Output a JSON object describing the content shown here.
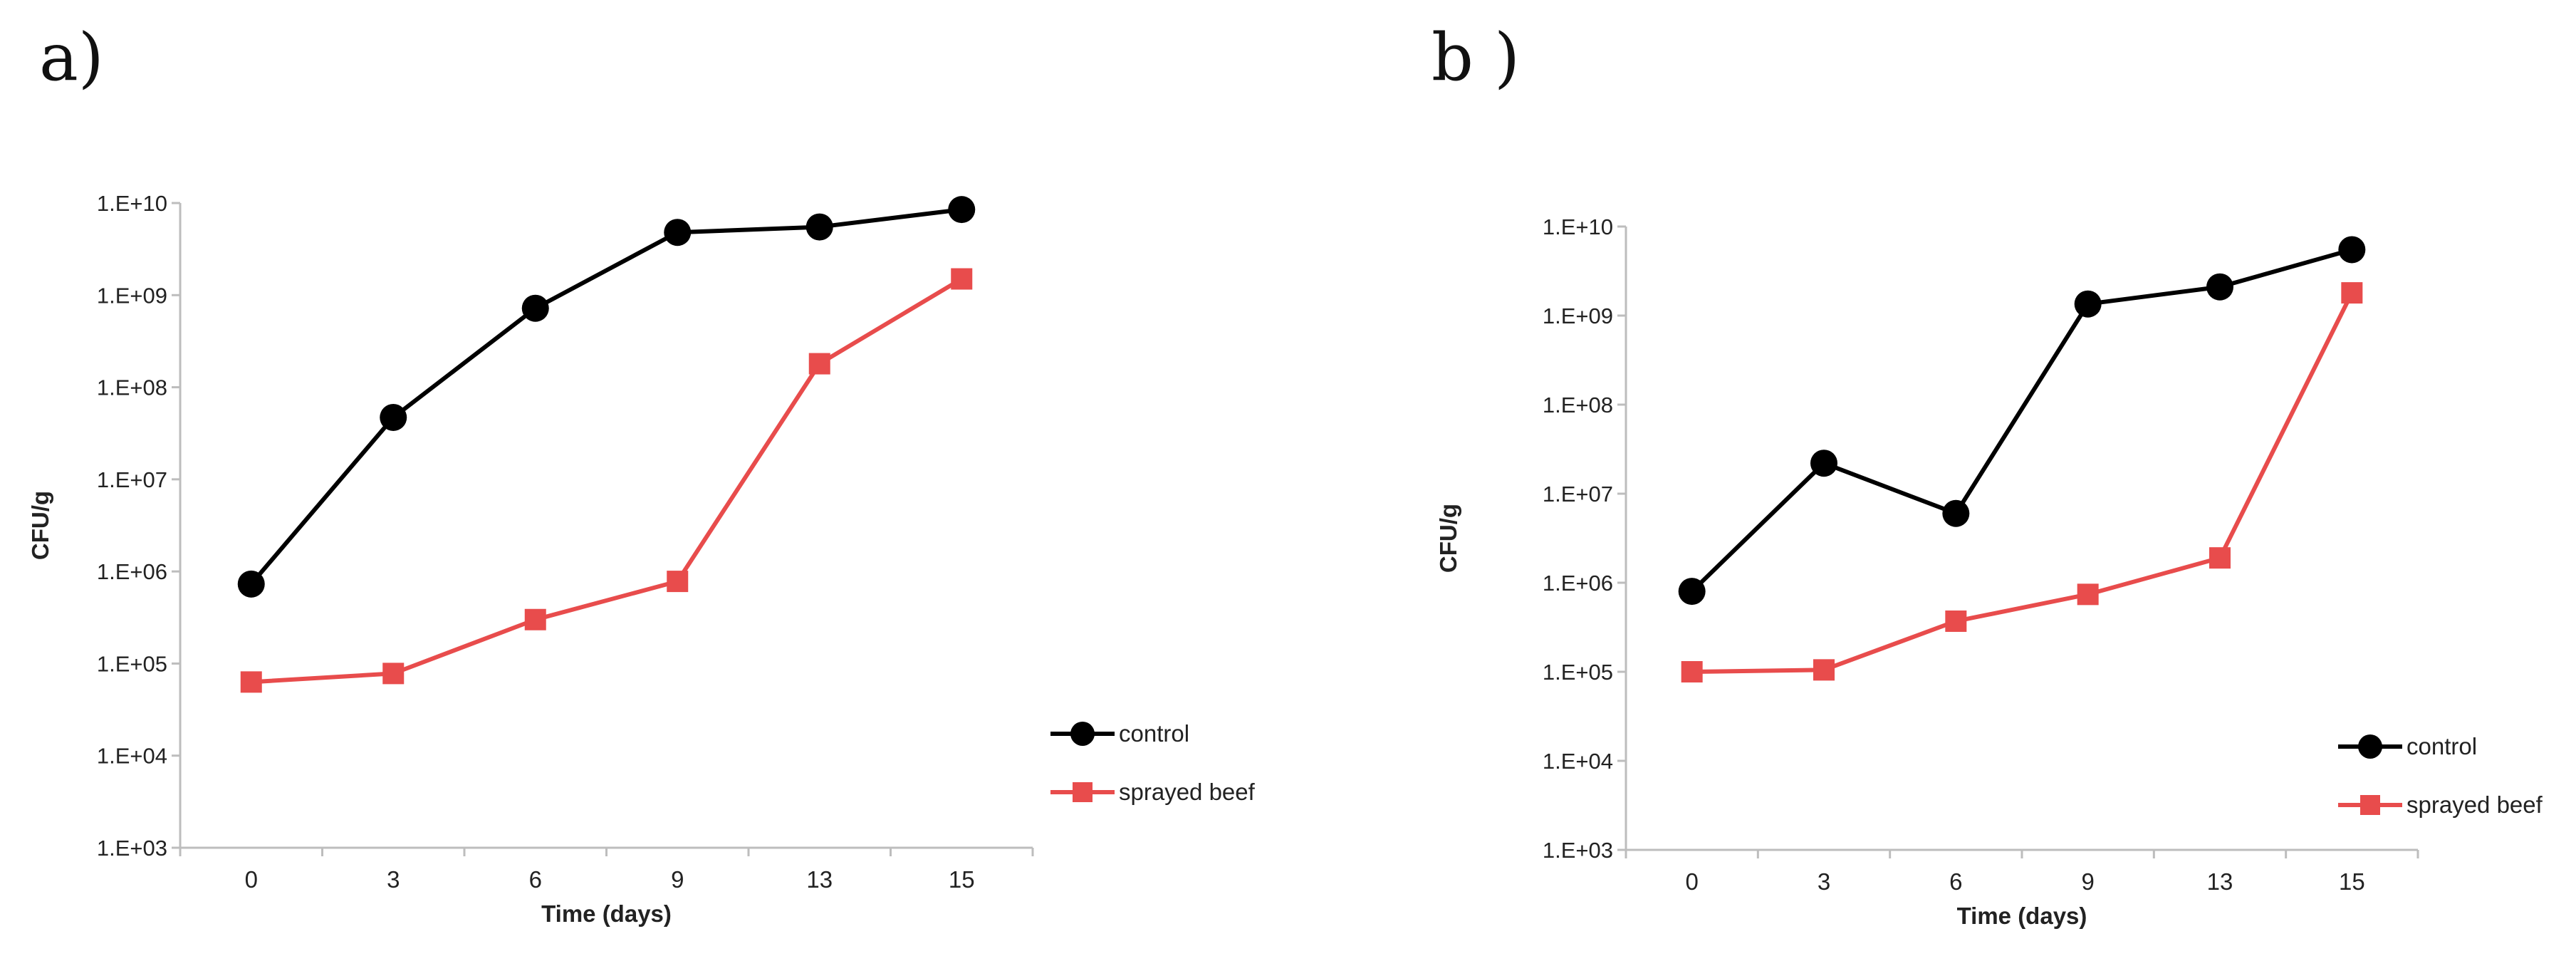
{
  "chart_data": [
    {
      "panel": "a)",
      "type": "line",
      "title": "",
      "xlabel": "Time (days)",
      "ylabel": "CFU/g",
      "y_scale": "log10",
      "ylim": [
        1000,
        10000000000
      ],
      "y_ticks": [
        "1.E+03",
        "1.E+04",
        "1.E+05",
        "1.E+06",
        "1.E+07",
        "1.E+08",
        "1.E+09",
        "1.E+10"
      ],
      "categories": [
        "0",
        "3",
        "6",
        "9",
        "13",
        "15"
      ],
      "legend_position": "right",
      "grid": false,
      "series": [
        {
          "name": "control",
          "color": "#000000",
          "marker": "circle",
          "values": [
            730000,
            47000000,
            720000000,
            4800000000,
            5500000000,
            8500000000
          ]
        },
        {
          "name": "sprayed beef",
          "color": "#e84c4c",
          "marker": "square",
          "values": [
            63000,
            78000,
            300000,
            780000,
            180000000,
            1500000000
          ]
        }
      ]
    },
    {
      "panel": "b )",
      "type": "line",
      "title": "",
      "xlabel": "Time (days)",
      "ylabel": "CFU/g",
      "y_scale": "log10",
      "ylim": [
        1000,
        10000000000
      ],
      "y_ticks": [
        "1.E+03",
        "1.E+04",
        "1.E+05",
        "1.E+06",
        "1.E+07",
        "1.E+08",
        "1.E+09",
        "1.E+10"
      ],
      "categories": [
        "0",
        "3",
        "6",
        "9",
        "13",
        "15"
      ],
      "legend_position": "right",
      "grid": false,
      "series": [
        {
          "name": "control",
          "color": "#000000",
          "marker": "circle",
          "values": [
            800000,
            22000000,
            6000000,
            1350000000,
            2100000000,
            5500000000
          ]
        },
        {
          "name": "sprayed beef",
          "color": "#e84c4c",
          "marker": "square",
          "values": [
            100000,
            105000,
            370000,
            740000,
            1900000,
            1800000000
          ]
        }
      ]
    }
  ]
}
